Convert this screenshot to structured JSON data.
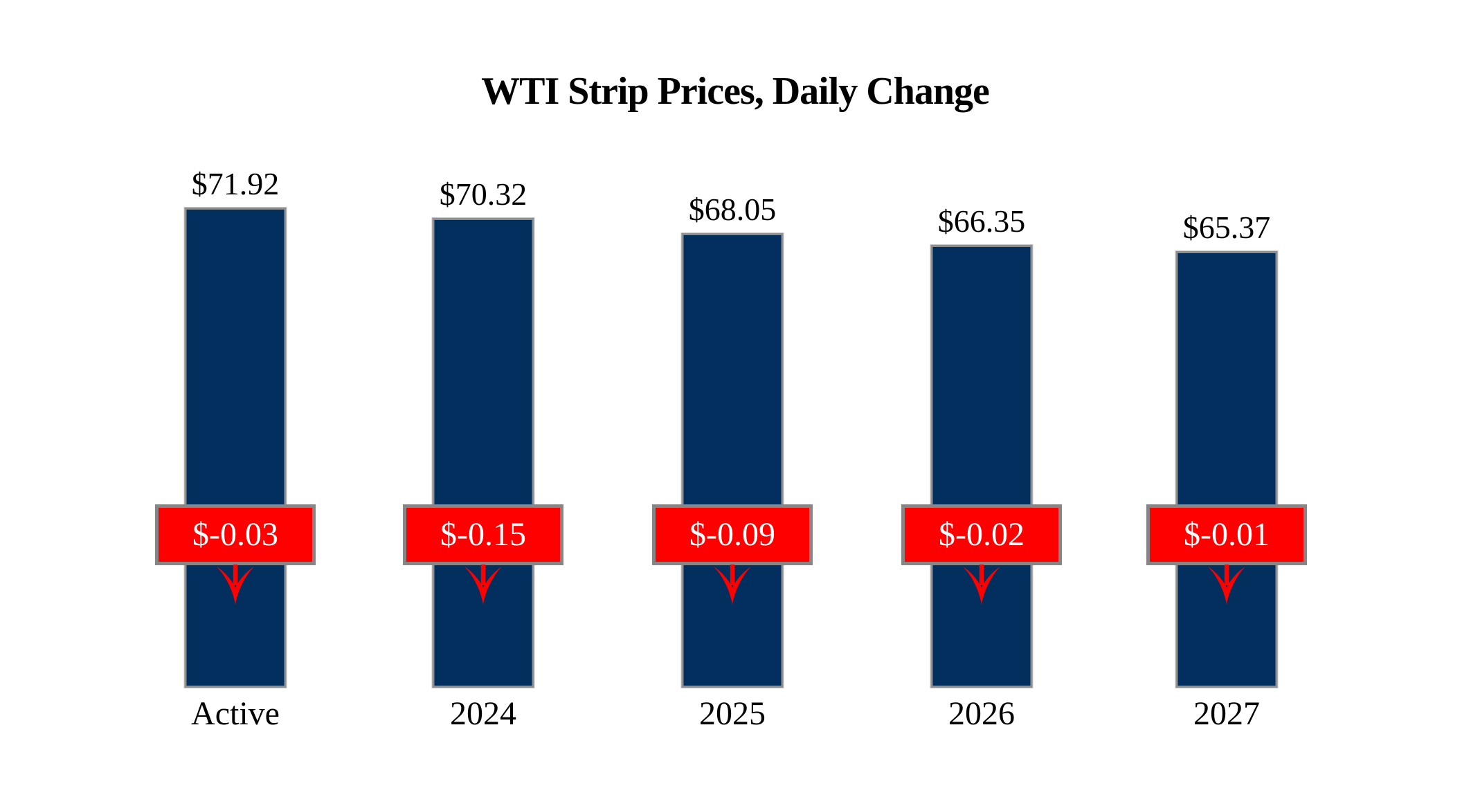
{
  "title": "WTI Strip Prices, Daily Change",
  "chart_data": {
    "type": "bar",
    "title": "WTI Strip Prices, Daily Change",
    "categories": [
      "Active",
      "2024",
      "2025",
      "2026",
      "2027"
    ],
    "series": [
      {
        "name": "Strip Price",
        "values": [
          71.92,
          70.32,
          68.05,
          66.35,
          65.37
        ]
      },
      {
        "name": "Daily Change",
        "values": [
          -0.03,
          -0.15,
          -0.09,
          -0.02,
          -0.01
        ]
      }
    ],
    "value_labels": [
      "$71.92",
      "$70.32",
      "$68.05",
      "$66.35",
      "$65.37"
    ],
    "change_labels": [
      "$-0.03",
      "$-0.15",
      "$-0.09",
      "$-0.02",
      "$-0.01"
    ],
    "xlabel": "",
    "ylabel": "",
    "ylim": [
      0,
      75
    ],
    "grid": false,
    "legend": "none",
    "colors": {
      "bar": "#032f5f",
      "bar_border": "#8f8f8f",
      "change_box": "#ff0000",
      "change_box_border": "#868686",
      "change_text": "#ffffff",
      "arrow": "#ff0000",
      "label_text": "#000000",
      "background": "#ffffff"
    }
  }
}
